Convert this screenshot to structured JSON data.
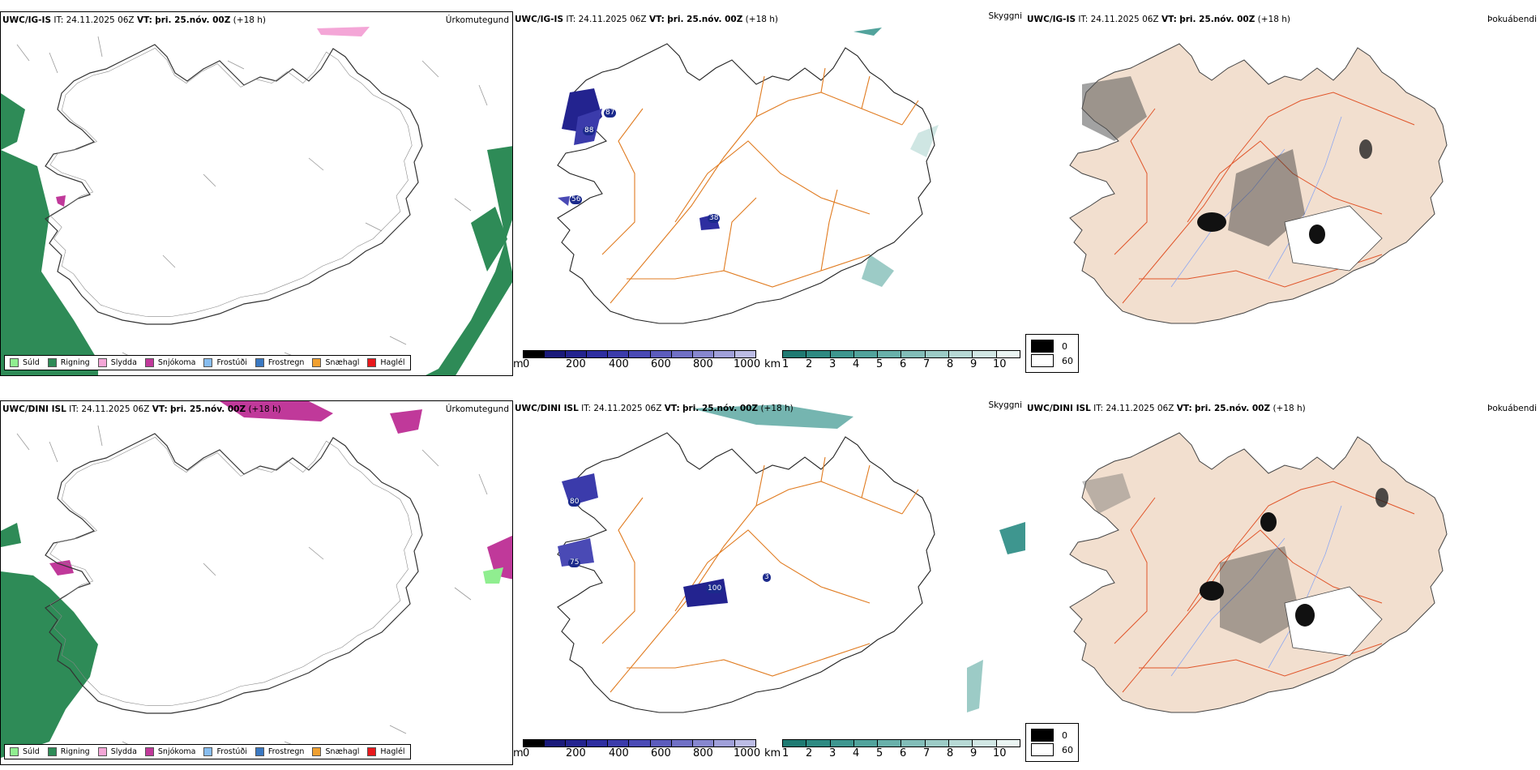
{
  "rows": [
    {
      "model": "UWC/IG-IS",
      "it_label": "IT:",
      "it_value": "24.11.2025 06Z",
      "vt_label": "VT:",
      "vt_value": "þri. 25.nóv. 00Z",
      "lead": "(+18 h)"
    },
    {
      "model": "UWC/DINI ISL",
      "it_label": "IT:",
      "it_value": "24.11.2025 06Z",
      "vt_label": "VT:",
      "vt_value": "þri. 25.nóv. 00Z",
      "lead": "(+18 h)"
    }
  ],
  "panel_titles": {
    "precip": "Úrkomutegund",
    "cloud": "Skyggni",
    "fog": "Þokuábendi"
  },
  "precip_legend": [
    {
      "label": "Súld",
      "color": "#90ee90"
    },
    {
      "label": "Rigning",
      "color": "#2e8b57"
    },
    {
      "label": "Slydda",
      "color": "#f4a6d7"
    },
    {
      "label": "Snjókoma",
      "color": "#c0399a"
    },
    {
      "label": "Frostúði",
      "color": "#87bdf0"
    },
    {
      "label": "Frostregn",
      "color": "#3a78c2"
    },
    {
      "label": "Snæhagl",
      "color": "#f0a030"
    },
    {
      "label": "Haglél",
      "color": "#e8181c"
    }
  ],
  "cloud_base_bar": {
    "unit": "m",
    "ticks": [
      "0",
      "200",
      "400",
      "600",
      "800",
      "1000"
    ],
    "colors": [
      "#000000",
      "#1a1a7a",
      "#23238f",
      "#2e2ea0",
      "#3b3bab",
      "#4a4ab5",
      "#5c5cbd",
      "#7070c5",
      "#8787cf",
      "#a0a0d9",
      "#bcbce5"
    ]
  },
  "visibility_bar": {
    "unit": "km",
    "ticks": [
      "1",
      "2",
      "3",
      "4",
      "5",
      "6",
      "7",
      "8",
      "9",
      "10"
    ],
    "colors": [
      "#1f7a72",
      "#2e8a82",
      "#3e968f",
      "#52a39c",
      "#69b0aa",
      "#82bdb8",
      "#9ccbc6",
      "#b7d9d5",
      "#d1e7e4",
      "#eaf4f2"
    ]
  },
  "fog_legend": [
    {
      "label": "0",
      "color": "#000000"
    },
    {
      "label": "60",
      "color": "#ffffff"
    }
  ],
  "stations_row1": [
    "87",
    "88",
    "56",
    "38"
  ],
  "stations_row2": [
    "80",
    "75",
    "100",
    "3"
  ]
}
